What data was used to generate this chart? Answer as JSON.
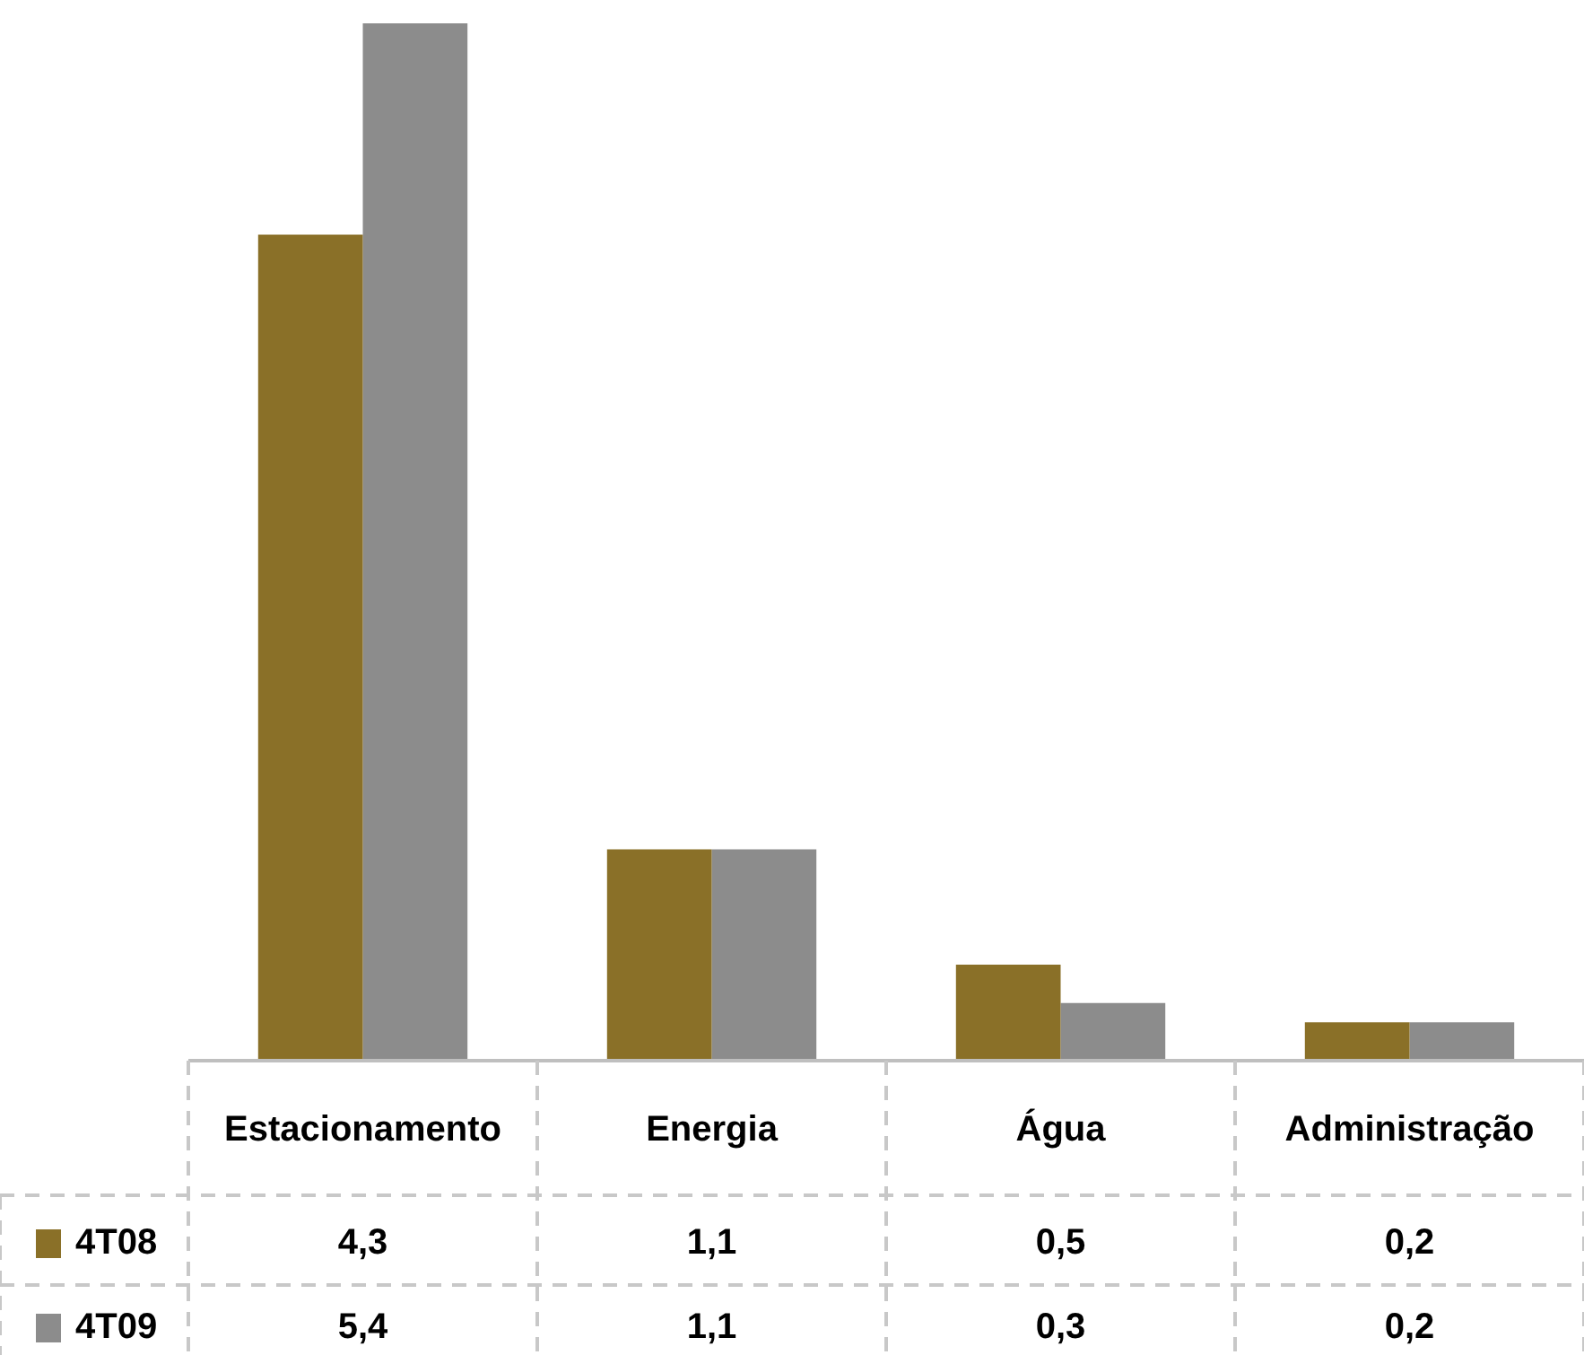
{
  "chart_data": {
    "type": "bar",
    "categories": [
      "Estacionamento",
      "Energia",
      "Água",
      "Administração"
    ],
    "series": [
      {
        "name": "4T08",
        "color": "#8a7028",
        "values": [
          4.3,
          1.1,
          0.5,
          0.2
        ],
        "value_labels": [
          "4,3",
          "1,1",
          "0,5",
          "0,2"
        ]
      },
      {
        "name": "4T09",
        "color": "#8c8c8c",
        "values": [
          5.4,
          1.1,
          0.3,
          0.2
        ],
        "value_labels": [
          "5,4",
          "1,1",
          "0,3",
          "0,2"
        ]
      }
    ],
    "legend": "bottom"
  }
}
